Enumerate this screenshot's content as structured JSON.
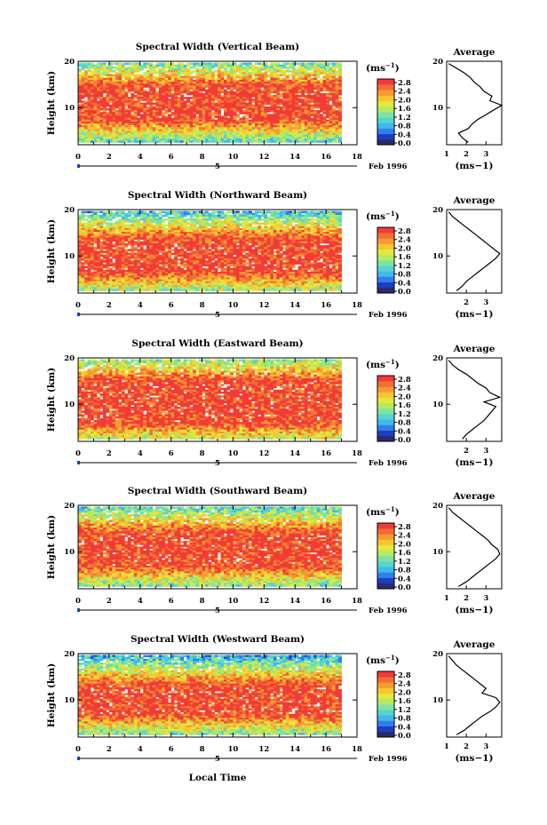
{
  "figure": {
    "x_axis_label": "Local Time",
    "month_label": "Feb 1996",
    "day_marker": "5",
    "avg_title": "Average",
    "cb_unit_base": "(ms",
    "cb_unit_exp": "−1",
    "cb_unit_close": ")"
  },
  "colors": {
    "scale": [
      "#2b2b6b",
      "#1b3fbf",
      "#2f7fe8",
      "#3fb8ee",
      "#56d4d0",
      "#7ee3a0",
      "#b4eb5f",
      "#e4e83c",
      "#f9c52e",
      "#f79a33",
      "#f06f35",
      "#f23b36"
    ]
  },
  "chart_data": [
    {
      "type": "heatmap",
      "title": "Spectral Width (Vertical Beam)",
      "ylabel": "Height (km)",
      "xlim": [
        0,
        18
      ],
      "ylim": [
        2,
        20
      ],
      "xticks": [
        "0",
        "2",
        "4",
        "6",
        "8",
        "10",
        "12",
        "14",
        "16",
        "18"
      ],
      "yticks": [
        "10",
        "20"
      ],
      "data_xrange": [
        0,
        17
      ],
      "colorbar_ticks": [
        "0.0",
        "0.4",
        "0.8",
        "1.2",
        "1.6",
        "2.0",
        "2.4",
        "2.8"
      ],
      "profile_peak_km": 10.5,
      "band_km": [
        7.5,
        14.5
      ],
      "average": {
        "xlabel": "(ms−1)",
        "xticks": [
          "1",
          "2",
          "3"
        ],
        "xlim": [
          1,
          3.8
        ],
        "yticks": [
          "10",
          "20"
        ],
        "profile": [
          [
            2.5,
            2.1
          ],
          [
            3.5,
            1.8
          ],
          [
            4.5,
            1.6
          ],
          [
            5.5,
            2.1
          ],
          [
            6.5,
            2.3
          ],
          [
            7.5,
            2.6
          ],
          [
            8.5,
            3.0
          ],
          [
            9.5,
            3.4
          ],
          [
            10.5,
            3.8
          ],
          [
            11.5,
            3.2
          ],
          [
            12.5,
            3.3
          ],
          [
            13.5,
            2.9
          ],
          [
            14.5,
            2.7
          ],
          [
            15.5,
            2.4
          ],
          [
            16.5,
            2.2
          ],
          [
            17.5,
            1.9
          ],
          [
            18.5,
            1.5
          ],
          [
            19.5,
            1.1
          ]
        ]
      }
    },
    {
      "type": "heatmap",
      "title": "Spectral Width (Northward Beam)",
      "ylabel": "Height (km)",
      "xlim": [
        0,
        18
      ],
      "ylim": [
        2,
        20
      ],
      "xticks": [
        "0",
        "2",
        "4",
        "6",
        "8",
        "10",
        "12",
        "14",
        "16",
        "18"
      ],
      "yticks": [
        "10",
        "20"
      ],
      "data_xrange": [
        0,
        17
      ],
      "colorbar_ticks": [
        "0.0",
        "0.4",
        "0.8",
        "1.2",
        "1.6",
        "2.0",
        "2.4",
        "2.8"
      ],
      "profile_peak_km": 11,
      "band_km": [
        6.5,
        13.5
      ],
      "average": {
        "xlabel": "(ms−1)",
        "xticks": [
          "2",
          "3"
        ],
        "xlim": [
          1,
          3.8
        ],
        "yticks": [
          "10",
          "20"
        ],
        "profile": [
          [
            2.5,
            1.5
          ],
          [
            3.5,
            1.8
          ],
          [
            4.5,
            2.0
          ],
          [
            5.5,
            2.3
          ],
          [
            6.5,
            2.6
          ],
          [
            7.5,
            2.9
          ],
          [
            8.5,
            3.2
          ],
          [
            9.5,
            3.5
          ],
          [
            10.5,
            3.7
          ],
          [
            11.5,
            3.4
          ],
          [
            12.5,
            3.1
          ],
          [
            13.5,
            2.8
          ],
          [
            14.5,
            2.5
          ],
          [
            15.5,
            2.2
          ],
          [
            16.5,
            1.9
          ],
          [
            17.5,
            1.6
          ],
          [
            18.5,
            1.3
          ],
          [
            19.5,
            1.1
          ]
        ]
      }
    },
    {
      "type": "heatmap",
      "title": "Spectral Width (Eastward Beam)",
      "ylabel": "Height (km)",
      "xlim": [
        0,
        18
      ],
      "ylim": [
        2,
        20
      ],
      "xticks": [
        "0",
        "2",
        "4",
        "6",
        "8",
        "10",
        "12",
        "14",
        "16",
        "18"
      ],
      "yticks": [
        "10",
        "20"
      ],
      "data_xrange": [
        0,
        17
      ],
      "colorbar_ticks": [
        "0.0",
        "0.4",
        "0.8",
        "1.2",
        "1.6",
        "2.0",
        "2.4",
        "2.8"
      ],
      "profile_peak_km": 11.5,
      "band_km": [
        6,
        15
      ],
      "average": {
        "xlabel": "(ms−1)",
        "xticks": [
          "2",
          "3"
        ],
        "xlim": [
          1,
          3.8
        ],
        "yticks": [
          "10",
          "20"
        ],
        "profile": [
          [
            2.5,
            1.8
          ],
          [
            3.5,
            2.0
          ],
          [
            4.5,
            2.3
          ],
          [
            5.5,
            2.6
          ],
          [
            6.5,
            2.9
          ],
          [
            7.5,
            3.1
          ],
          [
            8.5,
            3.3
          ],
          [
            9.5,
            3.5
          ],
          [
            10.5,
            2.9
          ],
          [
            11.5,
            3.7
          ],
          [
            12.5,
            3.2
          ],
          [
            13.5,
            3.0
          ],
          [
            14.5,
            2.6
          ],
          [
            15.5,
            2.3
          ],
          [
            16.5,
            2.0
          ],
          [
            17.5,
            1.6
          ],
          [
            18.5,
            1.3
          ],
          [
            19.5,
            1.1
          ]
        ]
      }
    },
    {
      "type": "heatmap",
      "title": "Spectral Width (Southward Beam)",
      "ylabel": "Height (km)",
      "xlim": [
        0,
        18
      ],
      "ylim": [
        2,
        20
      ],
      "xticks": [
        "0",
        "2",
        "4",
        "6",
        "8",
        "10",
        "12",
        "14",
        "16",
        "18"
      ],
      "yticks": [
        "10",
        "20"
      ],
      "data_xrange": [
        0,
        17
      ],
      "colorbar_ticks": [
        "0.0",
        "0.4",
        "0.8",
        "1.2",
        "1.6",
        "2.0",
        "2.4",
        "2.8"
      ],
      "profile_peak_km": 10,
      "band_km": [
        7,
        14
      ],
      "average": {
        "xlabel": "(ms−1)",
        "xticks": [
          "1",
          "2",
          "3"
        ],
        "xlim": [
          1,
          3.8
        ],
        "yticks": [
          "10",
          "20"
        ],
        "profile": [
          [
            2.5,
            1.6
          ],
          [
            3.5,
            2.0
          ],
          [
            4.5,
            2.3
          ],
          [
            5.5,
            2.6
          ],
          [
            6.5,
            2.9
          ],
          [
            7.5,
            3.2
          ],
          [
            8.5,
            3.5
          ],
          [
            9.5,
            3.7
          ],
          [
            10.5,
            3.6
          ],
          [
            11.5,
            3.3
          ],
          [
            12.5,
            3.1
          ],
          [
            13.5,
            2.8
          ],
          [
            14.5,
            2.5
          ],
          [
            15.5,
            2.2
          ],
          [
            16.5,
            1.9
          ],
          [
            17.5,
            1.6
          ],
          [
            18.5,
            1.3
          ],
          [
            19.5,
            1.1
          ]
        ]
      }
    },
    {
      "type": "heatmap",
      "title": "Spectral Width (Westward Beam)",
      "ylabel": "Height (km)",
      "xlim": [
        0,
        18
      ],
      "ylim": [
        2,
        20
      ],
      "xticks": [
        "0",
        "2",
        "4",
        "6",
        "8",
        "10",
        "12",
        "14",
        "16",
        "18"
      ],
      "yticks": [
        "10",
        "20"
      ],
      "data_xrange": [
        0,
        17
      ],
      "colorbar_ticks": [
        "0.0",
        "0.4",
        "0.8",
        "1.2",
        "1.6",
        "2.0",
        "2.4",
        "2.8"
      ],
      "profile_peak_km": 10,
      "band_km": [
        7,
        13
      ],
      "average": {
        "xlabel": "(ms−1)",
        "xticks": [
          "1",
          "2",
          "3"
        ],
        "xlim": [
          1,
          3.8
        ],
        "yticks": [
          "10",
          "20"
        ],
        "profile": [
          [
            2.5,
            1.5
          ],
          [
            3.5,
            1.9
          ],
          [
            4.5,
            2.2
          ],
          [
            5.5,
            2.5
          ],
          [
            6.5,
            2.8
          ],
          [
            7.5,
            3.2
          ],
          [
            8.5,
            3.5
          ],
          [
            9.5,
            3.7
          ],
          [
            10.5,
            3.5
          ],
          [
            11.5,
            2.8
          ],
          [
            12.5,
            3.0
          ],
          [
            13.5,
            2.7
          ],
          [
            14.5,
            2.4
          ],
          [
            15.5,
            2.1
          ],
          [
            16.5,
            1.8
          ],
          [
            17.5,
            1.5
          ],
          [
            18.5,
            1.3
          ],
          [
            19.5,
            1.1
          ]
        ]
      }
    }
  ]
}
